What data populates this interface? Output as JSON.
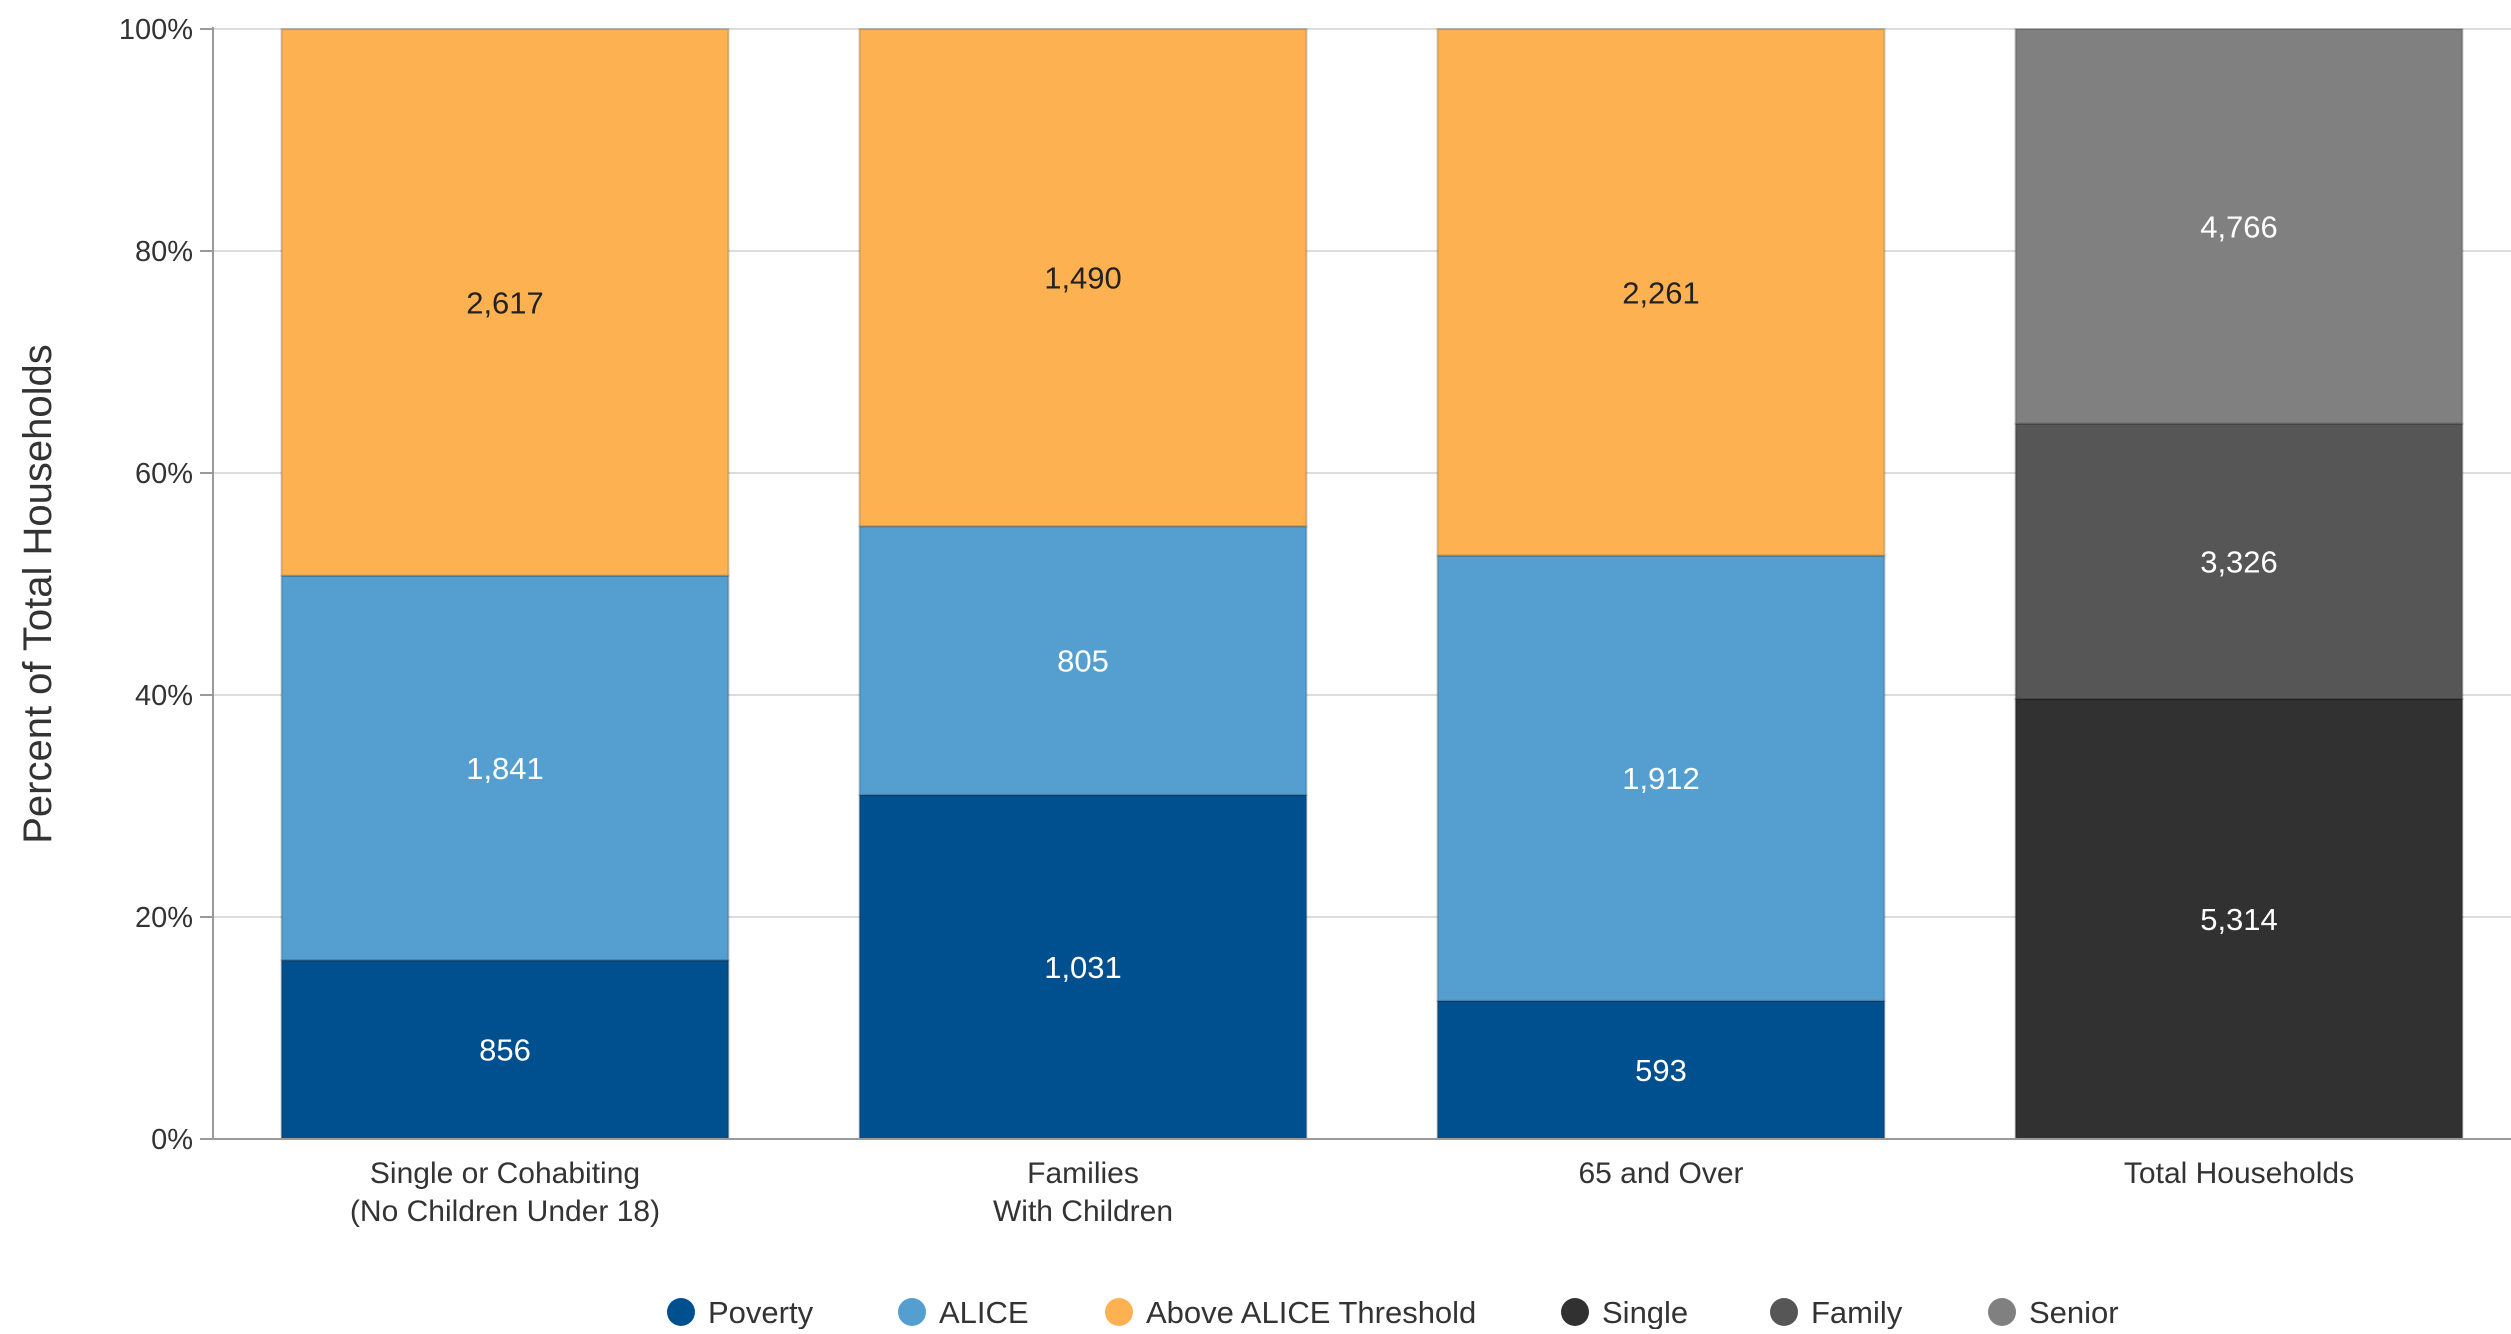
{
  "chart_data": {
    "type": "bar",
    "stacked": "percent",
    "ylabel": "Percent of Total Households",
    "ylim": [
      0,
      100
    ],
    "yticks": [
      "0%",
      "20%",
      "40%",
      "60%",
      "80%",
      "100%"
    ],
    "grid": true,
    "legend_position": "bottom",
    "groups": [
      {
        "category": [
          "Single or Cohabiting",
          "(No Children Under 18)"
        ],
        "segments": [
          {
            "series": "Poverty",
            "value": 856,
            "label": "856"
          },
          {
            "series": "ALICE",
            "value": 1841,
            "label": "1,841"
          },
          {
            "series": "Above ALICE Threshold",
            "value": 2617,
            "label": "2,617"
          }
        ]
      },
      {
        "category": [
          "Families",
          "With Children"
        ],
        "segments": [
          {
            "series": "Poverty",
            "value": 1031,
            "label": "1,031"
          },
          {
            "series": "ALICE",
            "value": 805,
            "label": "805"
          },
          {
            "series": "Above ALICE Threshold",
            "value": 1490,
            "label": "1,490"
          }
        ]
      },
      {
        "category": [
          "65 and Over"
        ],
        "segments": [
          {
            "series": "Poverty",
            "value": 593,
            "label": "593"
          },
          {
            "series": "ALICE",
            "value": 1912,
            "label": "1,912"
          },
          {
            "series": "Above ALICE Threshold",
            "value": 2261,
            "label": "2,261"
          }
        ]
      },
      {
        "category": [
          "Total Households"
        ],
        "segments": [
          {
            "series": "Single",
            "value": 5314,
            "label": "5,314"
          },
          {
            "series": "Family",
            "value": 3326,
            "label": "3,326"
          },
          {
            "series": "Senior",
            "value": 4766,
            "label": "4,766"
          }
        ]
      }
    ],
    "legend": [
      {
        "name": "Poverty",
        "color": "#004F8E"
      },
      {
        "name": "ALICE",
        "color": "#549FD0"
      },
      {
        "name": "Above ALICE Threshold",
        "color": "#FEB150"
      },
      {
        "name": "Single",
        "color": "#313131"
      },
      {
        "name": "Family",
        "color": "#565656"
      },
      {
        "name": "Senior",
        "color": "#808080"
      }
    ],
    "label_colors": {
      "Poverty": "#FFFFFF",
      "ALICE": "#FFFFFF",
      "Above ALICE Threshold": "#222222",
      "Single": "#FFFFFF",
      "Family": "#FFFFFF",
      "Senior": "#FFFFFF"
    }
  }
}
